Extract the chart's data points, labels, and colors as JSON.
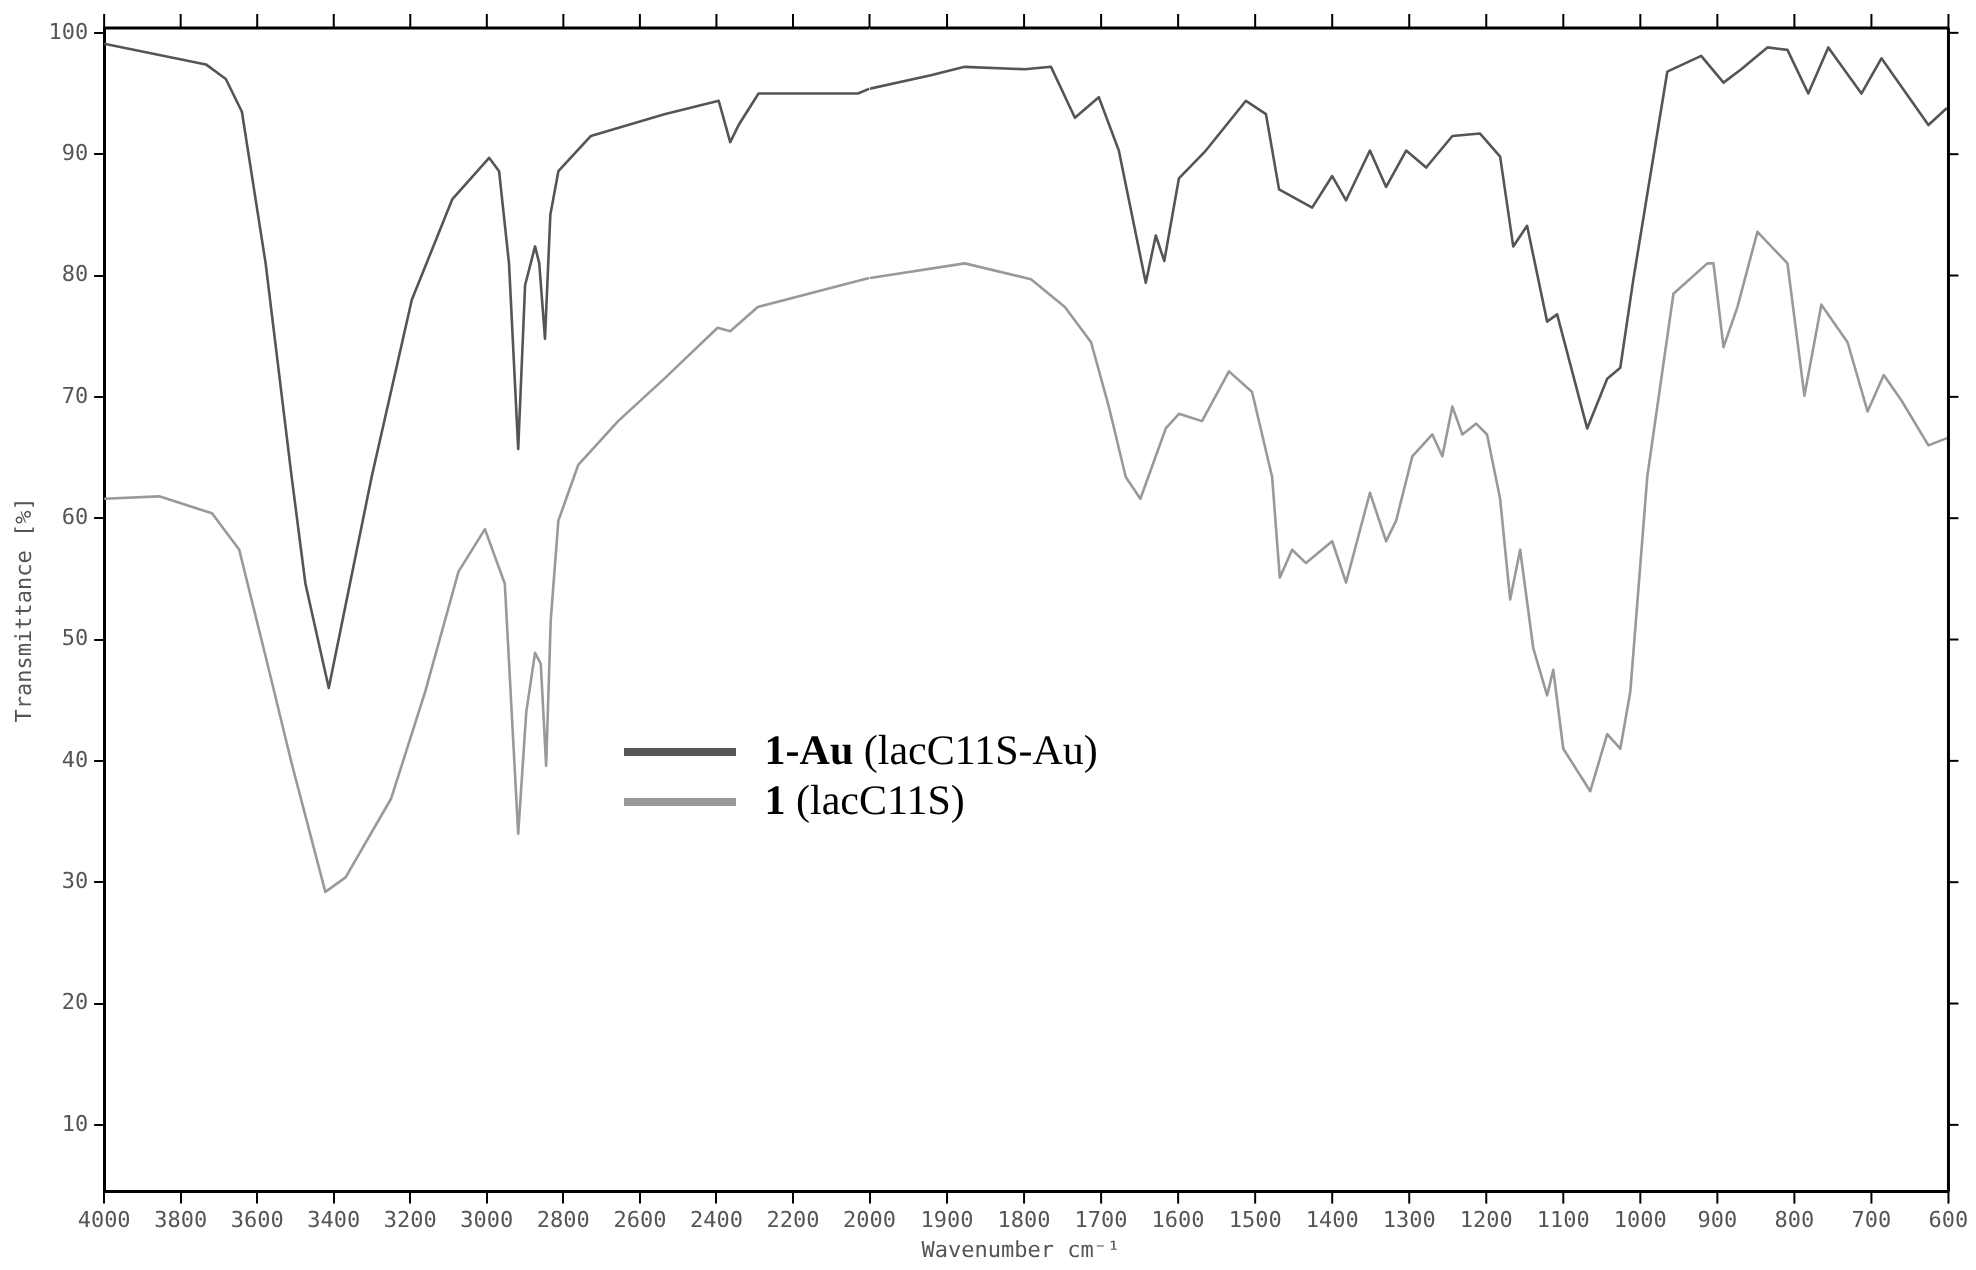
{
  "chart_data": [
    {
      "type": "line",
      "ylabel": "Transmittance [%]",
      "xlim": [
        4000,
        2000
      ],
      "xticks": [
        4000,
        3800,
        3600,
        3400,
        3200,
        3000,
        2800,
        2600,
        2400,
        2200,
        2000
      ],
      "ylim": [
        4.5,
        100.4
      ],
      "yticks": [
        10,
        20,
        30,
        40,
        50,
        60,
        70,
        80,
        90,
        100
      ],
      "legend": "center right",
      "grid": false,
      "marker": "none",
      "line_style": "solid",
      "series": [
        {
          "name": "1-Au (lacC11S-Au)",
          "color": "#555555",
          "x": [
            4000,
            3734,
            3682,
            3640,
            3578,
            3510,
            3474,
            3413,
            3301,
            3196,
            3090,
            2994,
            2968,
            2942,
            2918,
            2900,
            2874,
            2863,
            2848,
            2834,
            2813,
            2728,
            2536,
            2394,
            2364,
            2342,
            2290,
            2030,
            2000
          ],
          "values": [
            99.1,
            97.4,
            96.2,
            93.5,
            81,
            63.4,
            54.6,
            46,
            63.4,
            78,
            86.3,
            89.7,
            88.6,
            81,
            65.7,
            79.2,
            82.4,
            81,
            74.8,
            85,
            88.6,
            91.5,
            93.3,
            94.4,
            91,
            92.4,
            95,
            95,
            95.4
          ]
        },
        {
          "name": "1 (lacC11S)",
          "color": "#999999",
          "x": [
            4000,
            3856,
            3718,
            3647,
            3578,
            3510,
            3422,
            3369,
            3250,
            3161,
            3074,
            3005,
            2953,
            2918,
            2897,
            2874,
            2859,
            2845,
            2833,
            2813,
            2761,
            2657,
            2536,
            2397,
            2364,
            2292,
            2014,
            2000
          ],
          "values": [
            61.6,
            61.8,
            60.4,
            57.4,
            48.6,
            39.8,
            29.2,
            30.4,
            36.9,
            45.7,
            55.6,
            59.1,
            54.6,
            34,
            44,
            48.9,
            48,
            39.6,
            51.6,
            59.8,
            64.4,
            68,
            71.5,
            75.7,
            75.4,
            77.4,
            79.7,
            79.8
          ]
        }
      ]
    },
    {
      "type": "line",
      "xlabel": "Wavenumber cm⁻¹",
      "xlim": [
        2000,
        600
      ],
      "xticks": [
        1900,
        1800,
        1700,
        1600,
        1500,
        1400,
        1300,
        1200,
        1100,
        1000,
        900,
        800,
        700,
        600
      ],
      "ylim": [
        4.5,
        100.4
      ],
      "yticks": [
        10,
        20,
        30,
        40,
        50,
        60,
        70,
        80,
        90,
        100
      ],
      "tick_labels": "x",
      "grid": false,
      "marker": "none",
      "line_style": "solid",
      "series": [
        {
          "color": "#555555",
          "x": [
            2000,
            1921,
            1877,
            1799,
            1765,
            1734,
            1703,
            1677,
            1642,
            1629,
            1618,
            1599,
            1564,
            1512,
            1486,
            1469,
            1426,
            1400,
            1382,
            1351,
            1330,
            1304,
            1278,
            1244,
            1208,
            1182,
            1165,
            1147,
            1121,
            1108,
            1069,
            1043,
            1026,
            1009,
            965,
            921,
            892,
            869,
            835,
            809,
            782,
            756,
            713,
            687,
            626,
            602
          ],
          "values": [
            95.4,
            96.5,
            97.2,
            97,
            97.2,
            93,
            94.7,
            90.3,
            79.4,
            83.3,
            81.2,
            88,
            90.3,
            94.4,
            93.3,
            87.1,
            85.6,
            88.2,
            86.2,
            90.3,
            87.3,
            90.3,
            88.9,
            91.5,
            91.7,
            89.8,
            82.4,
            84.1,
            76.2,
            76.8,
            67.4,
            71.5,
            72.4,
            79.7,
            96.8,
            98.1,
            95.9,
            97,
            98.8,
            98.6,
            95,
            98.8,
            95,
            97.9,
            92.4,
            93.8
          ]
        },
        {
          "color": "#999999",
          "x": [
            2000,
            1877,
            1791,
            1747,
            1713,
            1690,
            1668,
            1649,
            1616,
            1599,
            1569,
            1534,
            1504,
            1478,
            1468,
            1452,
            1434,
            1400,
            1382,
            1351,
            1330,
            1317,
            1296,
            1270,
            1257,
            1244,
            1231,
            1213,
            1199,
            1182,
            1169,
            1156,
            1139,
            1121,
            1113,
            1100,
            1065,
            1043,
            1026,
            1013,
            991,
            957,
            913,
            905,
            892,
            874,
            848,
            809,
            787,
            765,
            731,
            705,
            684,
            661,
            626,
            602
          ],
          "values": [
            79.8,
            81,
            79.7,
            77.4,
            74.5,
            69.2,
            63.4,
            61.6,
            67.4,
            68.6,
            68,
            72.1,
            70.4,
            63.4,
            55.1,
            57.4,
            56.3,
            58.1,
            54.7,
            62.1,
            58.1,
            59.8,
            65.1,
            66.9,
            65.1,
            69.2,
            66.9,
            67.8,
            66.9,
            61.6,
            53.3,
            57.4,
            49.3,
            45.4,
            47.5,
            41,
            37.5,
            42.2,
            41,
            45.7,
            63.4,
            78.5,
            81,
            81,
            74.1,
            77.4,
            83.6,
            81,
            70.1,
            77.6,
            74.5,
            68.8,
            71.8,
            69.7,
            66,
            66.6
          ]
        }
      ]
    }
  ]
}
